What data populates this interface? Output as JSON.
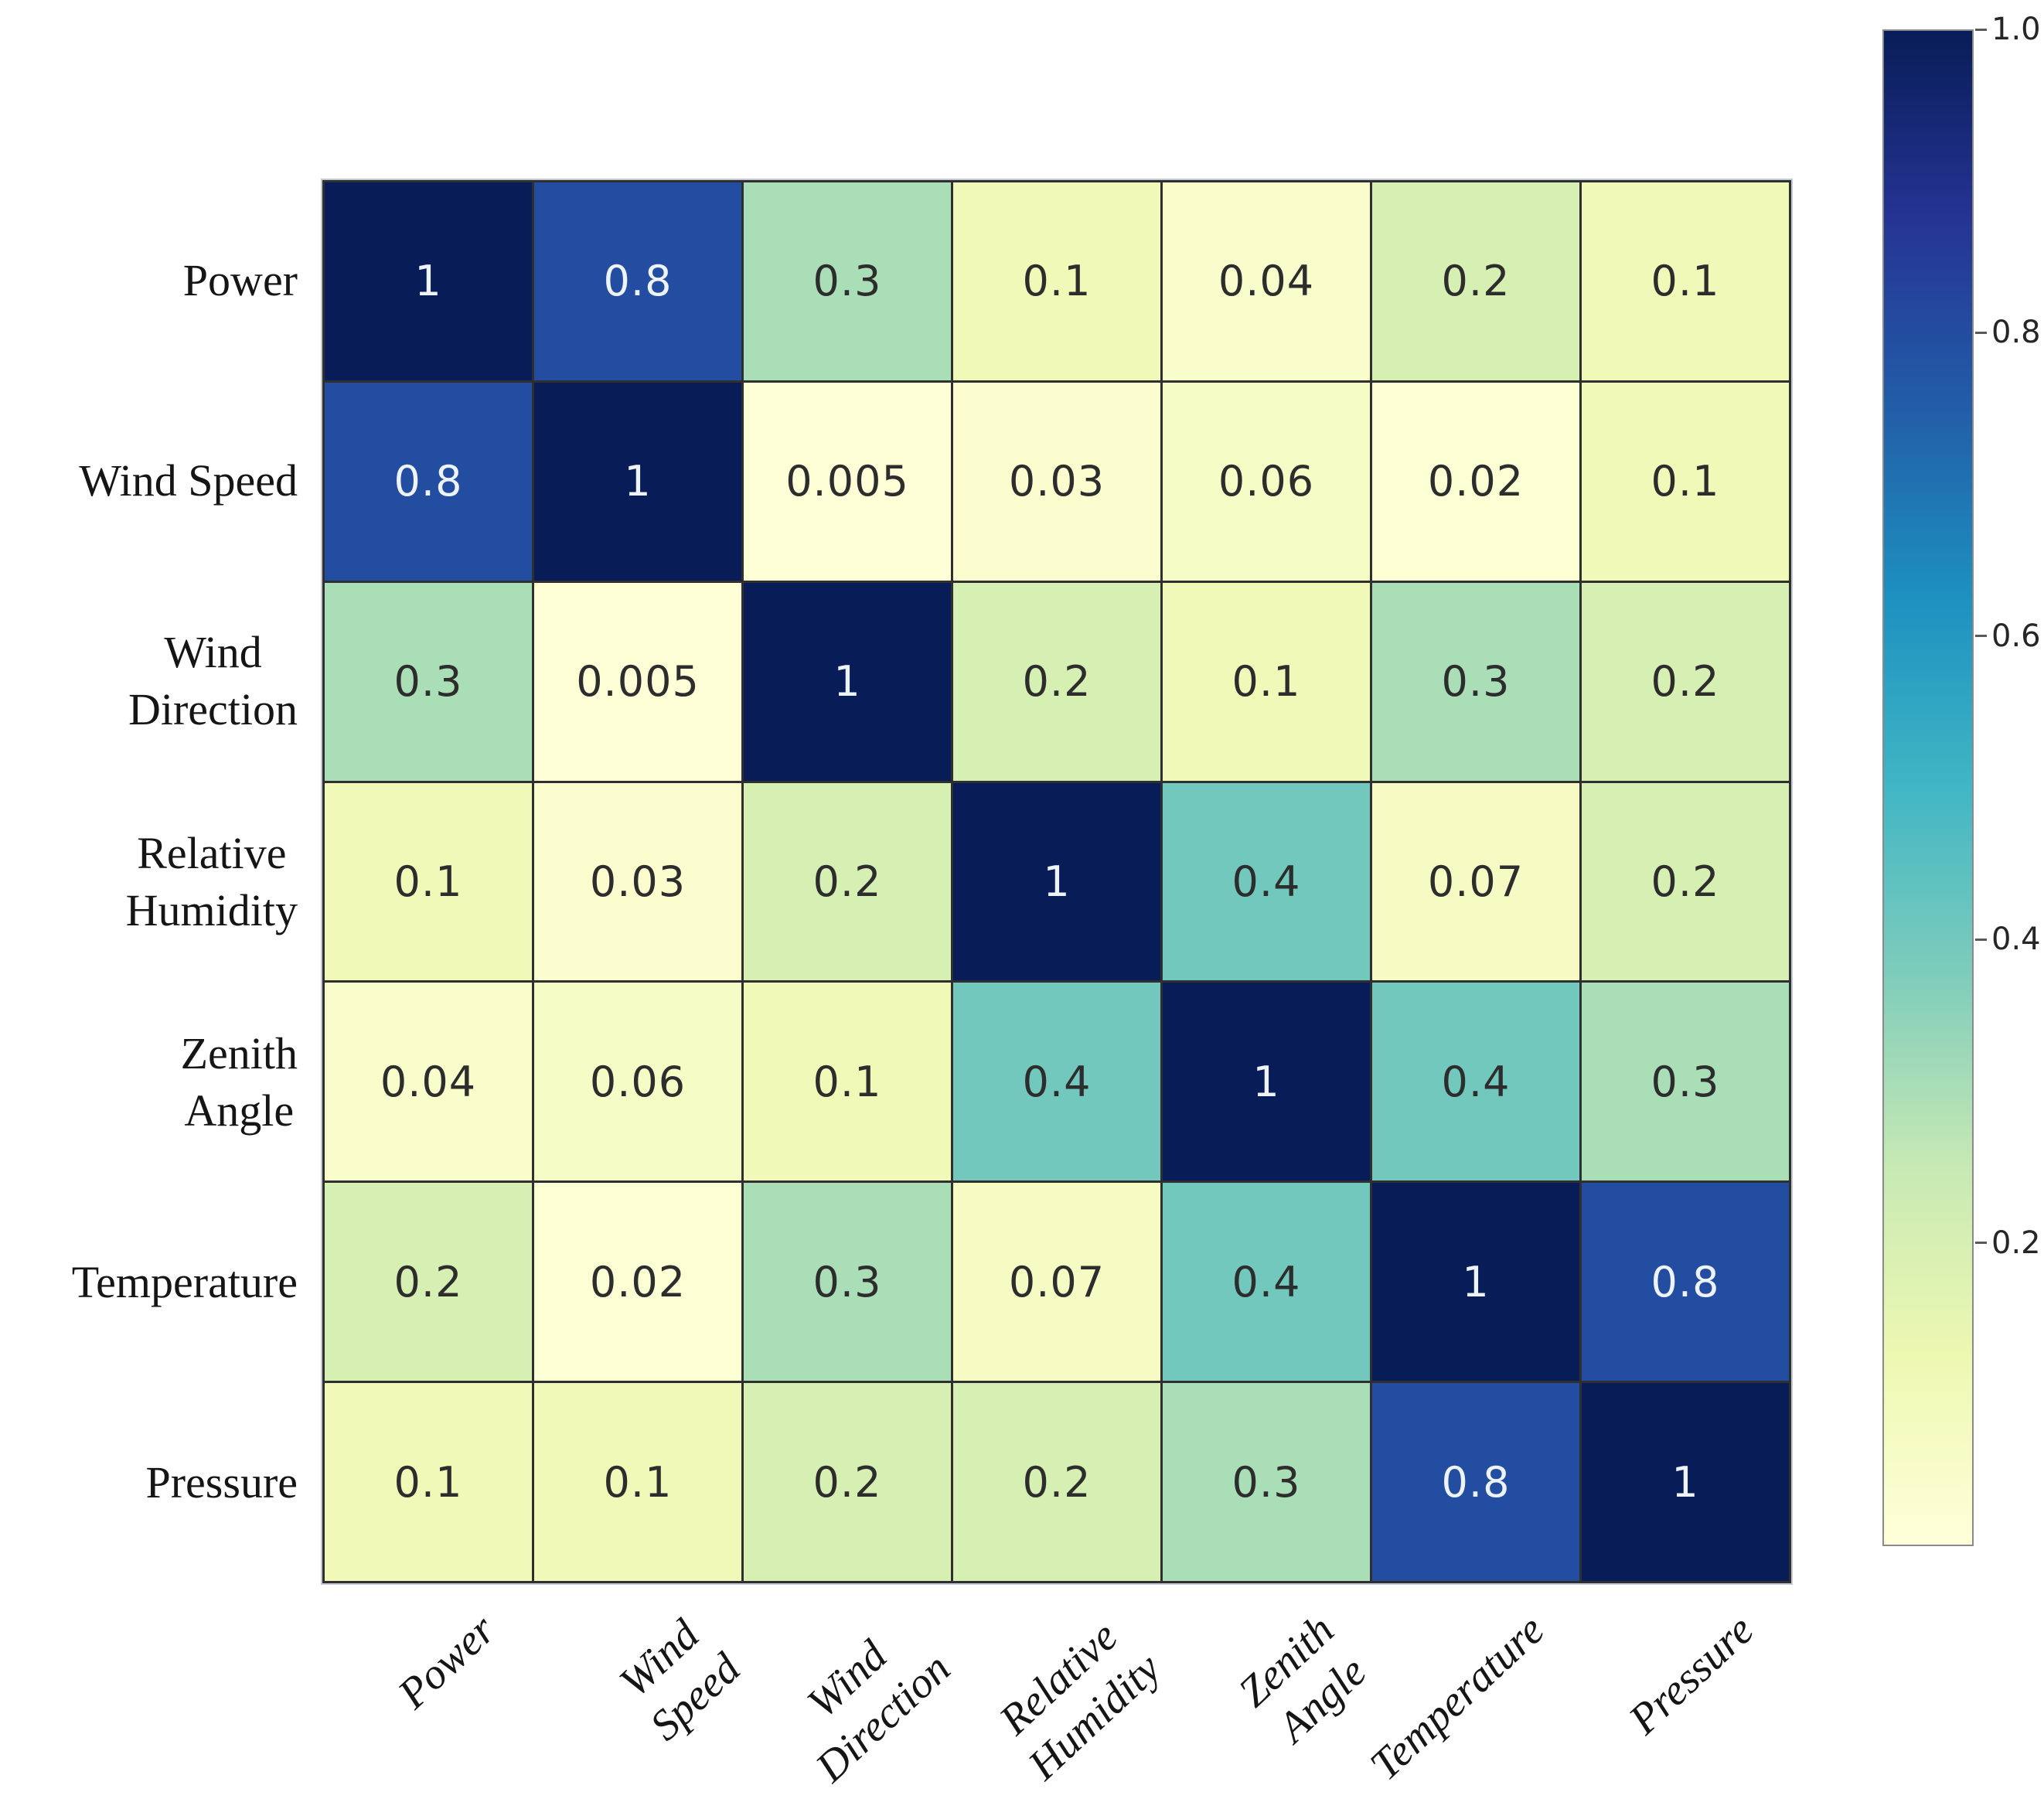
{
  "chart_data": {
    "type": "heatmap",
    "title": "",
    "xlabel": "",
    "ylabel": "",
    "variables": [
      "Power",
      "Wind Speed",
      "Wind Direction",
      "Relative Humidity",
      "Zenith Angle",
      "Temperature",
      "Pressure"
    ],
    "y_tick_labels": [
      [
        "Power"
      ],
      [
        "Wind Speed"
      ],
      [
        "Wind",
        "Direction"
      ],
      [
        "Relative",
        "Humidity"
      ],
      [
        "Zenith",
        "Angle"
      ],
      [
        "Temperature"
      ],
      [
        "Pressure"
      ]
    ],
    "x_tick_labels": [
      [
        "Power"
      ],
      [
        "Wind",
        "Speed"
      ],
      [
        "Wind",
        "Direction"
      ],
      [
        "Relative",
        "Humidity"
      ],
      [
        "Zenith",
        "Angle"
      ],
      [
        "Temperature"
      ],
      [
        "Pressure"
      ]
    ],
    "matrix": [
      [
        1,
        0.8,
        0.3,
        0.1,
        0.04,
        0.2,
        0.1
      ],
      [
        0.8,
        1,
        0.005,
        0.03,
        0.06,
        0.02,
        0.1
      ],
      [
        0.3,
        0.005,
        1,
        0.2,
        0.1,
        0.3,
        0.2
      ],
      [
        0.1,
        0.03,
        0.2,
        1,
        0.4,
        0.07,
        0.2
      ],
      [
        0.04,
        0.06,
        0.1,
        0.4,
        1,
        0.4,
        0.3
      ],
      [
        0.2,
        0.02,
        0.3,
        0.07,
        0.4,
        1,
        0.8
      ],
      [
        0.1,
        0.1,
        0.2,
        0.2,
        0.3,
        0.8,
        1
      ]
    ],
    "vmin": 0,
    "vmax": 1,
    "colormap": "YlGnBu",
    "colormap_stops": [
      [
        0,
        "#ffffd9"
      ],
      [
        0.125,
        "#edf8b1"
      ],
      [
        0.25,
        "#c7e9b4"
      ],
      [
        0.375,
        "#7fcdbb"
      ],
      [
        0.5,
        "#41b6c4"
      ],
      [
        0.625,
        "#1d91c0"
      ],
      [
        0.75,
        "#225ea8"
      ],
      [
        0.875,
        "#253494"
      ],
      [
        1,
        "#081d58"
      ]
    ],
    "colorbar_ticks": [
      {
        "value": 1.0,
        "label": "1.0"
      },
      {
        "value": 0.8,
        "label": "0.8"
      },
      {
        "value": 0.6,
        "label": "0.6"
      },
      {
        "value": 0.4,
        "label": "0.4"
      },
      {
        "value": 0.2,
        "label": "0.2"
      }
    ],
    "legend_position": "right",
    "grid": true,
    "annotation_text_dark": "#2d2d2d",
    "annotation_text_light": "#eef3f8",
    "gridline_color": "#2f2f2f"
  }
}
